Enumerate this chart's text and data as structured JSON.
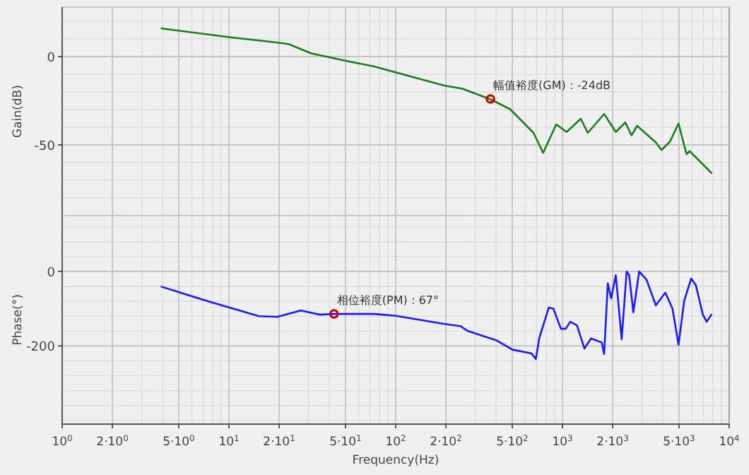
{
  "chart_data": [
    {
      "type": "line",
      "ylabel": "Gain(dB)",
      "log": "x",
      "grid": true,
      "tick_labels": "y",
      "xlim": [
        1,
        10000
      ],
      "xticks": [
        {
          "value": 1,
          "label": null
        },
        {
          "value": 2,
          "label": null
        },
        {
          "value": 5,
          "label": null
        },
        {
          "value": 10,
          "label": null
        },
        {
          "value": 20,
          "label": null
        },
        {
          "value": 50,
          "label": null
        },
        {
          "value": 100,
          "label": null
        },
        {
          "value": 200,
          "label": null
        },
        {
          "value": 500,
          "label": null
        },
        {
          "value": 1000,
          "label": null
        },
        {
          "value": 2000,
          "label": null
        },
        {
          "value": 5000,
          "label": null
        },
        {
          "value": 10000,
          "label": null
        }
      ],
      "ylim": [
        -90,
        28
      ],
      "yticks": [
        0,
        -50
      ],
      "annotations": [
        {
          "text": "幅值裕度(GM)：-24dB",
          "x": 370,
          "y": -24
        }
      ],
      "series": [
        {
          "color": "#1e7b1e",
          "x": [
            3.94,
            10,
            20,
            22.9,
            30.9,
            50.1,
            74.1,
            195,
            251,
            370,
            486,
            671,
            766,
            918,
            1059,
            1288,
            1419,
            1778,
            2089,
            2382,
            2594,
            2805,
            3631,
            3926,
            4416,
            4966,
            5546,
            5794,
            7816
          ],
          "values": [
            15.9,
            11,
            7.8,
            7,
            1.9,
            -2.4,
            -5.6,
            -16.4,
            -18.2,
            -24.2,
            -29.8,
            -43.2,
            -54.5,
            -38.4,
            -42.7,
            -35.2,
            -43.2,
            -32.5,
            -42.7,
            -37.3,
            -44.6,
            -39.2,
            -48.6,
            -52.9,
            -48.1,
            -37.9,
            -55.3,
            -53.5,
            -65.8
          ]
        }
      ]
    },
    {
      "type": "line",
      "ylabel": "Phase(°)",
      "xlabel": "Frequency(Hz)",
      "log": "x",
      "grid": true,
      "xlim": [
        1,
        10000
      ],
      "xticks": [
        {
          "value": 1,
          "label": "10$^{0}$"
        },
        {
          "value": 2,
          "label": "2·10$^{0}$"
        },
        {
          "value": 5,
          "label": "5·10$^{0}$"
        },
        {
          "value": 10,
          "label": "10$^{1}$"
        },
        {
          "value": 20,
          "label": "2·10$^{1}$"
        },
        {
          "value": 50,
          "label": "5·10$^{1}$"
        },
        {
          "value": 100,
          "label": "10$^{2}$"
        },
        {
          "value": 200,
          "label": "2·10$^{2}$"
        },
        {
          "value": 500,
          "label": "5·10$^{2}$"
        },
        {
          "value": 1000,
          "label": "10$^{3}$"
        },
        {
          "value": 2000,
          "label": "2·10$^{3}$"
        },
        {
          "value": 5000,
          "label": "5·10$^{3}$"
        },
        {
          "value": 10000,
          "label": "10$^{4}$"
        }
      ],
      "ylim": [
        -410,
        150
      ],
      "yticks": [
        0,
        -200
      ],
      "annotations": [
        {
          "text": "相位裕度(PM)：67°",
          "x": 42.7,
          "y": -114
        }
      ],
      "series": [
        {
          "color": "#1a1aff",
          "x": [
            3.94,
            7.38,
            15.1,
            19.5,
            27.0,
            35.1,
            42.7,
            74,
            100,
            195,
            245,
            271,
            401,
            501,
            652,
            693,
            726,
            828,
            883,
            979,
            1047,
            1114,
            1222,
            1355,
            1483,
            1722,
            1778,
            1871,
            1959,
            2089,
            2265,
            2427,
            2512,
            2661,
            2884,
            3192,
            3631,
            4140,
            4571,
            4966,
            5370,
            5916,
            6310,
            6950,
            7328,
            7816
          ],
          "values": [
            -41,
            -79,
            -120,
            -122,
            -105,
            -116,
            -114,
            -114,
            -119,
            -141,
            -147,
            -160,
            -185,
            -210,
            -220,
            -235,
            -179,
            -97,
            -100,
            -154,
            -154,
            -135,
            -145,
            -207,
            -180,
            -191,
            -222,
            -32,
            -72,
            -10,
            -182,
            0,
            -10,
            -110,
            0,
            -22,
            -91,
            -57,
            -100,
            -197,
            -79,
            -19,
            -37,
            -116,
            -135,
            -116
          ]
        }
      ]
    }
  ]
}
